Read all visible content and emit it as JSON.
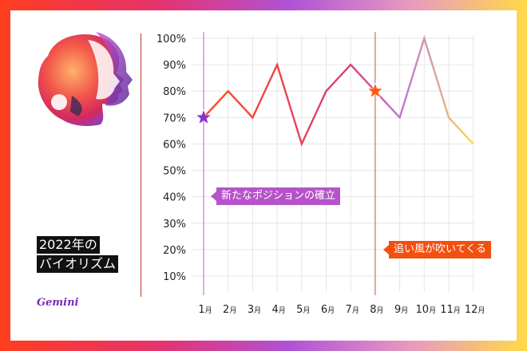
{
  "title": {
    "line1": "2022年の",
    "line2": "バイオリズム"
  },
  "brand": "Gemini",
  "callouts": {
    "first": "新たなポジションの確立",
    "second": "追い風が吹いてくる"
  },
  "colors": {
    "line_start": "#ff4a1a",
    "line_mid": "#d63f7d",
    "line_end": "#ffd94a",
    "star_purple": "#8a32c8",
    "star_orange": "#ff5a10",
    "grid": "#e6e6e6"
  },
  "chart_data": {
    "type": "line",
    "title": "",
    "xlabel": "",
    "ylabel": "",
    "categories": [
      "1月",
      "2月",
      "3月",
      "4月",
      "5月",
      "6月",
      "7月",
      "8月",
      "9月",
      "10月",
      "11月",
      "12月"
    ],
    "tick_numbers": [
      "1",
      "2",
      "3",
      "4",
      "5",
      "6",
      "7",
      "8",
      "9",
      "10",
      "11",
      "12"
    ],
    "tick_suffix": "月",
    "values": [
      70,
      80,
      70,
      90,
      60,
      80,
      90,
      80,
      70,
      100,
      70,
      60
    ],
    "y_ticks": [
      "10%",
      "20%",
      "30%",
      "40%",
      "50%",
      "60%",
      "70%",
      "80%",
      "90%",
      "100%"
    ],
    "ylim": [
      0,
      100
    ],
    "grid": true,
    "legend": "none",
    "markers": [
      {
        "month_index": 0,
        "shape": "star",
        "color": "#8a32c8"
      },
      {
        "month_index": 7,
        "shape": "star",
        "color": "#ff5a10"
      }
    ]
  }
}
